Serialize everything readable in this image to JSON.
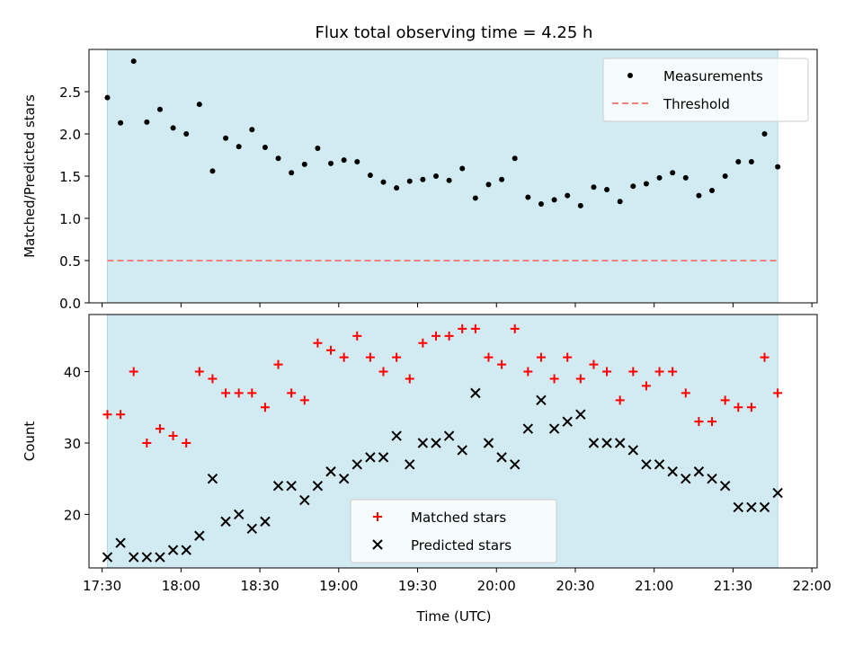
{
  "figure": {
    "title": "Flux total observing time = 4.25 h",
    "xlabel": "Time (UTC)"
  },
  "chart_data": [
    {
      "type": "scatter",
      "panel": "top",
      "title": "Flux total observing time = 4.25 h",
      "ylabel": "Matched/Predicted stars",
      "xlabel": "",
      "ylim": [
        0,
        3.0
      ],
      "yticks": [
        0.0,
        0.5,
        1.0,
        1.5,
        2.0,
        2.5
      ],
      "ytick_labels": [
        "0.0",
        "0.5",
        "1.0",
        "1.5",
        "2.0",
        "2.5"
      ],
      "shaded_time_range": [
        "17:32",
        "21:47"
      ],
      "shade_color": "#add8e6",
      "threshold": 0.5,
      "legend_position": "upper right",
      "series": [
        {
          "name": "Measurements",
          "kind": "scatter",
          "marker": "dot",
          "color": "#000000",
          "x": [
            "17:32",
            "17:37",
            "17:42",
            "17:47",
            "17:52",
            "17:57",
            "18:02",
            "18:07",
            "18:12",
            "18:17",
            "18:22",
            "18:27",
            "18:32",
            "18:37",
            "18:42",
            "18:47",
            "18:52",
            "18:57",
            "19:02",
            "19:07",
            "19:12",
            "19:17",
            "19:22",
            "19:27",
            "19:32",
            "19:37",
            "19:42",
            "19:47",
            "19:52",
            "19:57",
            "20:02",
            "20:07",
            "20:12",
            "20:17",
            "20:22",
            "20:27",
            "20:32",
            "20:37",
            "20:42",
            "20:47",
            "20:52",
            "20:57",
            "21:02",
            "21:07",
            "21:12",
            "21:17",
            "21:22",
            "21:27",
            "21:32",
            "21:37",
            "21:42",
            "21:47"
          ],
          "y": [
            2.43,
            2.13,
            2.86,
            2.14,
            2.29,
            2.07,
            2.0,
            2.35,
            1.56,
            1.95,
            1.85,
            2.05,
            1.84,
            1.71,
            1.54,
            1.64,
            1.83,
            1.65,
            1.69,
            1.67,
            1.51,
            1.43,
            1.36,
            1.44,
            1.46,
            1.5,
            1.45,
            1.59,
            1.24,
            1.4,
            1.46,
            1.71,
            1.25,
            1.17,
            1.22,
            1.27,
            1.15,
            1.37,
            1.34,
            1.2,
            1.38,
            1.41,
            1.48,
            1.54,
            1.48,
            1.27,
            1.33,
            1.5,
            1.67,
            1.67,
            2.0,
            1.61
          ]
        },
        {
          "name": "Threshold",
          "kind": "hline",
          "style": "dashed",
          "color": "#f08080",
          "y": 0.5
        }
      ]
    },
    {
      "type": "scatter",
      "panel": "bottom",
      "ylabel": "Count",
      "xlabel": "Time (UTC)",
      "ylim": [
        12.5,
        48
      ],
      "yticks": [
        20,
        30,
        40
      ],
      "ytick_labels": [
        "20",
        "30",
        "40"
      ],
      "xlim": [
        "17:25",
        "22:02"
      ],
      "xticks": [
        "17:30",
        "18:00",
        "18:30",
        "19:00",
        "19:30",
        "20:00",
        "20:30",
        "21:00",
        "21:30",
        "22:00"
      ],
      "xtick_labels": [
        "17:30",
        "18:00",
        "18:30",
        "19:00",
        "19:30",
        "20:00",
        "20:30",
        "21:00",
        "21:30",
        "22:00"
      ],
      "shaded_time_range": [
        "17:32",
        "21:47"
      ],
      "shade_color": "#add8e6",
      "legend_position": "lower center",
      "series": [
        {
          "name": "Matched stars",
          "kind": "scatter",
          "marker": "plus",
          "color": "#ff0000",
          "x": [
            "17:32",
            "17:37",
            "17:42",
            "17:47",
            "17:52",
            "17:57",
            "18:02",
            "18:07",
            "18:12",
            "18:17",
            "18:22",
            "18:27",
            "18:32",
            "18:37",
            "18:42",
            "18:47",
            "18:52",
            "18:57",
            "19:02",
            "19:07",
            "19:12",
            "19:17",
            "19:22",
            "19:27",
            "19:32",
            "19:37",
            "19:42",
            "19:47",
            "19:52",
            "19:57",
            "20:02",
            "20:07",
            "20:12",
            "20:17",
            "20:22",
            "20:27",
            "20:32",
            "20:37",
            "20:42",
            "20:47",
            "20:52",
            "20:57",
            "21:02",
            "21:07",
            "21:12",
            "21:17",
            "21:22",
            "21:27",
            "21:32",
            "21:37",
            "21:42",
            "21:47"
          ],
          "y": [
            34,
            34,
            40,
            30,
            32,
            31,
            30,
            40,
            39,
            37,
            37,
            37,
            35,
            41,
            37,
            36,
            44,
            43,
            42,
            45,
            42,
            40,
            42,
            39,
            44,
            45,
            45,
            46,
            46,
            42,
            41,
            46,
            40,
            42,
            39,
            42,
            39,
            41,
            40,
            36,
            40,
            38,
            40,
            40,
            37,
            33,
            33,
            36,
            35,
            35,
            42,
            37
          ]
        },
        {
          "name": "Predicted stars",
          "kind": "scatter",
          "marker": "x",
          "color": "#000000",
          "x": [
            "17:32",
            "17:37",
            "17:42",
            "17:47",
            "17:52",
            "17:57",
            "18:02",
            "18:07",
            "18:12",
            "18:17",
            "18:22",
            "18:27",
            "18:32",
            "18:37",
            "18:42",
            "18:47",
            "18:52",
            "18:57",
            "19:02",
            "19:07",
            "19:12",
            "19:17",
            "19:22",
            "19:27",
            "19:32",
            "19:37",
            "19:42",
            "19:47",
            "19:52",
            "19:57",
            "20:02",
            "20:07",
            "20:12",
            "20:17",
            "20:22",
            "20:27",
            "20:32",
            "20:37",
            "20:42",
            "20:47",
            "20:52",
            "20:57",
            "21:02",
            "21:07",
            "21:12",
            "21:17",
            "21:22",
            "21:27",
            "21:32",
            "21:37",
            "21:42",
            "21:47"
          ],
          "y": [
            14,
            16,
            14,
            14,
            14,
            15,
            15,
            17,
            25,
            19,
            20,
            18,
            19,
            24,
            24,
            22,
            24,
            26,
            25,
            27,
            28,
            28,
            31,
            27,
            30,
            30,
            31,
            29,
            37,
            30,
            28,
            27,
            32,
            36,
            32,
            33,
            34,
            30,
            30,
            30,
            29,
            27,
            27,
            26,
            25,
            26,
            25,
            24,
            21,
            21,
            21,
            23
          ]
        }
      ]
    }
  ]
}
